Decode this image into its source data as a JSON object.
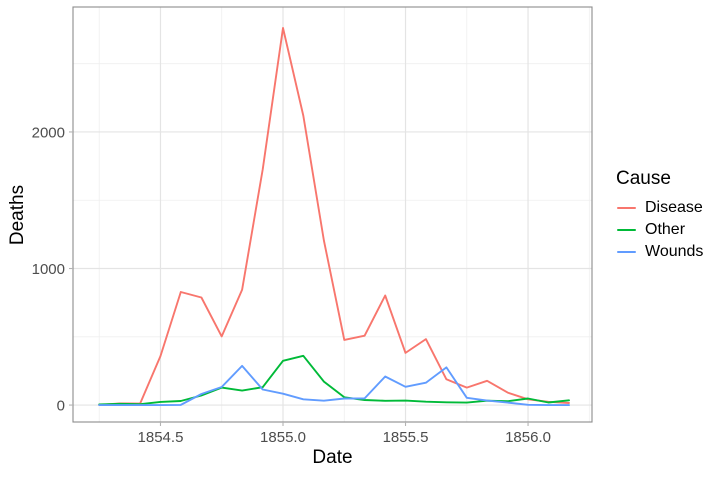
{
  "chart_data": {
    "type": "line",
    "xlabel": "Date",
    "ylabel": "Deaths",
    "legend_title": "Cause",
    "legend_position": "right",
    "grid": true,
    "x": [
      1854.25,
      1854.333,
      1854.417,
      1854.5,
      1854.583,
      1854.667,
      1854.75,
      1854.833,
      1854.917,
      1855.0,
      1855.083,
      1855.167,
      1855.25,
      1855.333,
      1855.417,
      1855.5,
      1855.583,
      1855.667,
      1855.75,
      1855.833,
      1855.917,
      1856.0,
      1856.083,
      1856.167
    ],
    "series": [
      {
        "name": "Disease",
        "color": "#F8766D",
        "values": [
          1,
          12,
          11,
          359,
          828,
          788,
          503,
          844,
          1725,
          2761,
          2120,
          1205,
          477,
          508,
          802,
          382,
          483,
          189,
          128,
          178,
          91,
          42,
          24,
          15
        ]
      },
      {
        "name": "Other",
        "color": "#00BA38",
        "values": [
          5,
          9,
          6,
          23,
          30,
          70,
          128,
          106,
          131,
          324,
          361,
          172,
          57,
          37,
          31,
          33,
          25,
          20,
          18,
          32,
          28,
          48,
          19,
          35
        ]
      },
      {
        "name": "Wounds",
        "color": "#619CFF",
        "values": [
          0,
          0,
          0,
          0,
          1,
          81,
          132,
          287,
          114,
          83,
          42,
          32,
          48,
          49,
          209,
          134,
          164,
          276,
          53,
          33,
          18,
          2,
          0,
          0
        ]
      }
    ],
    "xlim": [
      1854.143,
      1856.261
    ],
    "ylim": [
      -124,
      2915
    ],
    "x_ticks": [
      {
        "value": 1854.5,
        "label": "1854.5"
      },
      {
        "value": 1855.0,
        "label": "1855.0"
      },
      {
        "value": 1855.5,
        "label": "1855.5"
      },
      {
        "value": 1856.0,
        "label": "1856.0"
      }
    ],
    "y_ticks": [
      {
        "value": 0,
        "label": "0"
      },
      {
        "value": 1000,
        "label": "1000"
      },
      {
        "value": 2000,
        "label": "2000"
      }
    ],
    "x_minor": [
      1854.25,
      1854.75,
      1855.25,
      1855.75,
      1856.25
    ],
    "y_minor": [
      500,
      1500,
      2500
    ]
  },
  "style": {
    "background": "#FFFFFF",
    "panel_border_color": "#8C8C8C",
    "grid_major_color": "#E4E4E4",
    "grid_minor_color": "#EFEFEF",
    "tick_color": "#B3B3B3",
    "tick_label_color": "#4D4D4D",
    "axis_title_color": "#000000"
  }
}
